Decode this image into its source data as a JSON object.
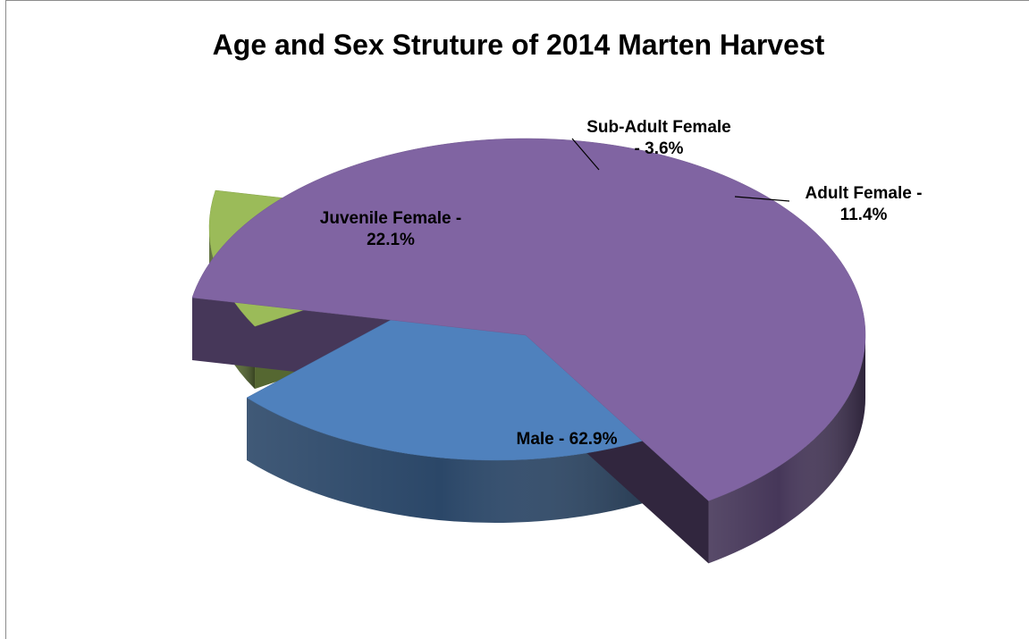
{
  "chart_data": {
    "type": "pie",
    "title": "Age and Sex Struture of 2014 Marten Harvest",
    "slices": [
      {
        "label": "Male",
        "value": 62.9,
        "label_lines": [
          "Male - 62.9%"
        ],
        "color": "#8064a2"
      },
      {
        "label": "Juvenile Female",
        "value": 22.1,
        "label_lines": [
          "Juvenile Female -",
          "22.1%"
        ],
        "color": "#4f81bd"
      },
      {
        "label": "Sub-Adult Female",
        "value": 3.6,
        "label_lines": [
          "Sub-Adult Female",
          "- 3.6%"
        ],
        "color": "#c0504d"
      },
      {
        "label": "Adult Female",
        "value": 11.4,
        "label_lines": [
          "Adult Female -",
          "11.4%"
        ],
        "color": "#9bbb59"
      }
    ],
    "legend": "none",
    "style": "3d-exploded"
  }
}
